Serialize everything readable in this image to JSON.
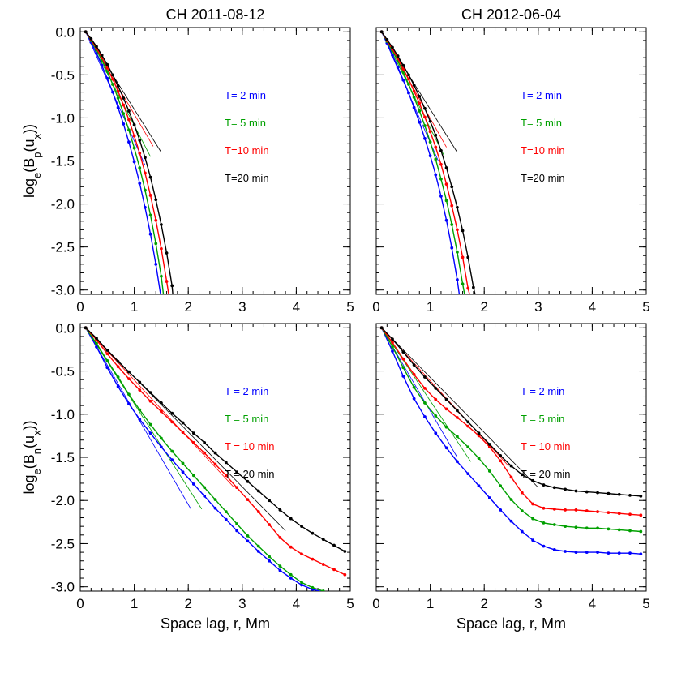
{
  "chart_data": [
    {
      "type": "line",
      "panel": "top-left",
      "title": "CH 2011-08-12",
      "xlabel": "",
      "ylabel": "loge(Bp(ux))",
      "xlim": [
        0,
        5
      ],
      "ylim": [
        -3.05,
        0.05
      ],
      "xticks": [
        "0",
        "1",
        "2",
        "3",
        "4",
        "5"
      ],
      "yticks": [
        "0.0",
        "-0.5",
        "-1.0",
        "-1.5",
        "-2.0",
        "-2.5",
        "-3.0"
      ],
      "legend_placement": "right",
      "series": [
        {
          "name": "T= 2 min",
          "color": "#0000ff",
          "x": [
            0.1,
            0.2,
            0.3,
            0.4,
            0.5,
            0.6,
            0.7,
            0.8,
            0.9,
            1.0,
            1.1,
            1.2,
            1.3,
            1.4,
            1.5
          ],
          "y": [
            0.0,
            -0.12,
            -0.25,
            -0.39,
            -0.54,
            -0.7,
            -0.88,
            -1.07,
            -1.28,
            -1.51,
            -1.76,
            -2.04,
            -2.35,
            -2.7,
            -3.1
          ]
        },
        {
          "name": "T= 5 min",
          "color": "#00a000",
          "x": [
            0.1,
            0.2,
            0.3,
            0.4,
            0.5,
            0.6,
            0.7,
            0.8,
            0.9,
            1.0,
            1.1,
            1.2,
            1.3,
            1.4,
            1.5,
            1.55
          ],
          "y": [
            0.0,
            -0.1,
            -0.21,
            -0.33,
            -0.46,
            -0.61,
            -0.77,
            -0.95,
            -1.14,
            -1.35,
            -1.58,
            -1.84,
            -2.13,
            -2.46,
            -2.84,
            -3.1
          ]
        },
        {
          "name": "T=10 min",
          "color": "#ff0000",
          "x": [
            0.1,
            0.2,
            0.3,
            0.4,
            0.5,
            0.6,
            0.7,
            0.8,
            0.9,
            1.0,
            1.1,
            1.2,
            1.3,
            1.4,
            1.5,
            1.6,
            1.65
          ],
          "y": [
            0.0,
            -0.09,
            -0.19,
            -0.3,
            -0.42,
            -0.55,
            -0.69,
            -0.85,
            -1.02,
            -1.21,
            -1.41,
            -1.64,
            -1.9,
            -2.19,
            -2.52,
            -2.9,
            -3.1
          ]
        },
        {
          "name": "T=20 min",
          "color": "#000000",
          "x": [
            0.1,
            0.2,
            0.3,
            0.4,
            0.5,
            0.6,
            0.7,
            0.8,
            0.9,
            1.0,
            1.1,
            1.2,
            1.3,
            1.4,
            1.5,
            1.6,
            1.7,
            1.72
          ],
          "y": [
            0.0,
            -0.08,
            -0.17,
            -0.27,
            -0.38,
            -0.5,
            -0.63,
            -0.77,
            -0.92,
            -1.08,
            -1.26,
            -1.46,
            -1.69,
            -1.95,
            -2.24,
            -2.57,
            -2.95,
            -3.1
          ]
        }
      ],
      "fits": [
        {
          "color": "#0000ff",
          "x": [
            0.1,
            1.2
          ],
          "y": [
            0.0,
            -1.55
          ]
        },
        {
          "color": "#00a000",
          "x": [
            0.1,
            1.3
          ],
          "y": [
            0.0,
            -1.45
          ]
        },
        {
          "color": "#ff0000",
          "x": [
            0.1,
            1.35
          ],
          "y": [
            0.0,
            -1.33
          ]
        },
        {
          "color": "#000000",
          "x": [
            0.1,
            1.5
          ],
          "y": [
            0.0,
            -1.4
          ]
        }
      ]
    },
    {
      "type": "line",
      "panel": "top-right",
      "title": "CH 2012-06-04",
      "xlabel": "",
      "ylabel": "",
      "xlim": [
        0,
        5
      ],
      "ylim": [
        -3.05,
        0.05
      ],
      "xticks": [
        "0",
        "1",
        "2",
        "3",
        "4",
        "5"
      ],
      "yticks": [],
      "legend_placement": "right",
      "series": [
        {
          "name": "T= 2 min",
          "color": "#0000ff",
          "x": [
            0.1,
            0.2,
            0.3,
            0.4,
            0.5,
            0.6,
            0.7,
            0.8,
            0.9,
            1.0,
            1.1,
            1.2,
            1.3,
            1.4,
            1.5,
            1.55
          ],
          "y": [
            0.0,
            -0.13,
            -0.27,
            -0.41,
            -0.56,
            -0.71,
            -0.88,
            -1.05,
            -1.24,
            -1.44,
            -1.66,
            -1.91,
            -2.19,
            -2.51,
            -2.88,
            -3.1
          ]
        },
        {
          "name": "T= 5 min",
          "color": "#00a000",
          "x": [
            0.1,
            0.2,
            0.3,
            0.4,
            0.5,
            0.6,
            0.7,
            0.8,
            0.9,
            1.0,
            1.1,
            1.2,
            1.3,
            1.4,
            1.5,
            1.6,
            1.65
          ],
          "y": [
            0.0,
            -0.11,
            -0.22,
            -0.34,
            -0.47,
            -0.61,
            -0.76,
            -0.92,
            -1.09,
            -1.28,
            -1.48,
            -1.71,
            -1.96,
            -2.24,
            -2.56,
            -2.93,
            -3.1
          ]
        },
        {
          "name": "T=10 min",
          "color": "#ff0000",
          "x": [
            0.1,
            0.2,
            0.3,
            0.4,
            0.5,
            0.6,
            0.7,
            0.8,
            0.9,
            1.0,
            1.1,
            1.2,
            1.3,
            1.4,
            1.5,
            1.6,
            1.7,
            1.75
          ],
          "y": [
            0.0,
            -0.1,
            -0.2,
            -0.31,
            -0.43,
            -0.55,
            -0.69,
            -0.83,
            -0.99,
            -1.16,
            -1.34,
            -1.54,
            -1.77,
            -2.02,
            -2.3,
            -2.62,
            -2.98,
            -3.1
          ]
        },
        {
          "name": "T=20 min",
          "color": "#000000",
          "x": [
            0.1,
            0.2,
            0.3,
            0.4,
            0.5,
            0.6,
            0.7,
            0.8,
            0.9,
            1.0,
            1.1,
            1.2,
            1.3,
            1.4,
            1.5,
            1.6,
            1.7,
            1.8,
            1.85
          ],
          "y": [
            0.0,
            -0.09,
            -0.18,
            -0.28,
            -0.39,
            -0.5,
            -0.62,
            -0.75,
            -0.89,
            -1.04,
            -1.2,
            -1.38,
            -1.58,
            -1.8,
            -2.04,
            -2.31,
            -2.62,
            -2.97,
            -3.1
          ]
        }
      ],
      "fits": [
        {
          "color": "#0000ff",
          "x": [
            0.1,
            1.15
          ],
          "y": [
            0.0,
            -1.5
          ]
        },
        {
          "color": "#00a000",
          "x": [
            0.1,
            1.25
          ],
          "y": [
            0.0,
            -1.43
          ]
        },
        {
          "color": "#ff0000",
          "x": [
            0.1,
            1.3
          ],
          "y": [
            0.0,
            -1.34
          ]
        },
        {
          "color": "#000000",
          "x": [
            0.1,
            1.5
          ],
          "y": [
            0.0,
            -1.4
          ]
        }
      ]
    },
    {
      "type": "line",
      "panel": "bottom-left",
      "title": "",
      "xlabel": "Space lag, r, Mm",
      "ylabel": "loge(Bn(ux))",
      "xlim": [
        0,
        5
      ],
      "ylim": [
        -3.05,
        0.05
      ],
      "xticks": [
        "0",
        "1",
        "2",
        "3",
        "4",
        "5"
      ],
      "yticks": [
        "0.0",
        "-0.5",
        "-1.0",
        "-1.5",
        "-2.0",
        "-2.5",
        "-3.0"
      ],
      "legend_placement": "right",
      "series": [
        {
          "name": "T = 2 min",
          "color": "#0000ff",
          "x": [
            0.1,
            0.3,
            0.5,
            0.7,
            0.9,
            1.1,
            1.3,
            1.5,
            1.7,
            1.9,
            2.1,
            2.3,
            2.5,
            2.7,
            2.9,
            3.1,
            3.3,
            3.5,
            3.7,
            3.9,
            4.1,
            4.3,
            4.5,
            4.55
          ],
          "y": [
            0.0,
            -0.22,
            -0.46,
            -0.68,
            -0.88,
            -1.06,
            -1.22,
            -1.38,
            -1.53,
            -1.67,
            -1.81,
            -1.95,
            -2.09,
            -2.22,
            -2.35,
            -2.47,
            -2.59,
            -2.7,
            -2.81,
            -2.9,
            -2.98,
            -3.03,
            -3.06,
            -3.07
          ]
        },
        {
          "name": "T = 5 min",
          "color": "#00a000",
          "x": [
            0.1,
            0.3,
            0.5,
            0.7,
            0.9,
            1.1,
            1.3,
            1.5,
            1.7,
            1.9,
            2.1,
            2.3,
            2.5,
            2.7,
            2.9,
            3.1,
            3.3,
            3.5,
            3.7,
            3.9,
            4.1,
            4.3,
            4.5,
            4.6
          ],
          "y": [
            0.0,
            -0.18,
            -0.38,
            -0.57,
            -0.77,
            -0.95,
            -1.12,
            -1.28,
            -1.43,
            -1.57,
            -1.71,
            -1.85,
            -1.99,
            -2.13,
            -2.27,
            -2.41,
            -2.53,
            -2.65,
            -2.76,
            -2.86,
            -2.95,
            -3.01,
            -3.05,
            -3.07
          ]
        },
        {
          "name": "T = 10 min",
          "color": "#ff0000",
          "x": [
            0.1,
            0.3,
            0.5,
            0.7,
            0.9,
            1.1,
            1.3,
            1.5,
            1.7,
            1.9,
            2.1,
            2.3,
            2.5,
            2.7,
            2.9,
            3.1,
            3.3,
            3.5,
            3.7,
            3.9,
            4.1,
            4.3,
            4.5,
            4.7,
            4.9
          ],
          "y": [
            0.0,
            -0.14,
            -0.3,
            -0.45,
            -0.59,
            -0.72,
            -0.85,
            -0.97,
            -1.09,
            -1.21,
            -1.33,
            -1.45,
            -1.58,
            -1.71,
            -1.85,
            -1.99,
            -2.13,
            -2.28,
            -2.43,
            -2.54,
            -2.62,
            -2.68,
            -2.74,
            -2.8,
            -2.86
          ]
        },
        {
          "name": "T = 20 min",
          "color": "#000000",
          "x": [
            0.1,
            0.3,
            0.5,
            0.7,
            0.9,
            1.1,
            1.3,
            1.5,
            1.7,
            1.9,
            2.1,
            2.3,
            2.5,
            2.7,
            2.9,
            3.1,
            3.3,
            3.5,
            3.7,
            3.9,
            4.1,
            4.3,
            4.5,
            4.7,
            4.9
          ],
          "y": [
            0.0,
            -0.12,
            -0.26,
            -0.39,
            -0.51,
            -0.63,
            -0.75,
            -0.87,
            -0.99,
            -1.1,
            -1.22,
            -1.33,
            -1.45,
            -1.56,
            -1.67,
            -1.78,
            -1.89,
            -2.0,
            -2.11,
            -2.21,
            -2.3,
            -2.38,
            -2.45,
            -2.52,
            -2.59
          ]
        }
      ],
      "fits": [
        {
          "color": "#0000ff",
          "x": [
            0.1,
            2.05
          ],
          "y": [
            0.0,
            -2.1
          ]
        },
        {
          "color": "#00a000",
          "x": [
            0.1,
            2.25
          ],
          "y": [
            0.0,
            -2.1
          ]
        },
        {
          "color": "#ff0000",
          "x": [
            0.1,
            2.85
          ],
          "y": [
            0.0,
            -1.85
          ]
        },
        {
          "color": "#000000",
          "x": [
            0.1,
            3.8
          ],
          "y": [
            0.0,
            -2.35
          ]
        }
      ]
    },
    {
      "type": "line",
      "panel": "bottom-right",
      "title": "",
      "xlabel": "Space lag, r, Mm",
      "ylabel": "",
      "xlim": [
        0,
        5
      ],
      "ylim": [
        -3.05,
        0.05
      ],
      "xticks": [
        "0",
        "1",
        "2",
        "3",
        "4",
        "5"
      ],
      "yticks": [],
      "legend_placement": "right",
      "series": [
        {
          "name": "T = 2 min",
          "color": "#0000ff",
          "x": [
            0.1,
            0.3,
            0.5,
            0.7,
            0.9,
            1.1,
            1.3,
            1.5,
            1.7,
            1.9,
            2.1,
            2.3,
            2.5,
            2.7,
            2.9,
            3.1,
            3.3,
            3.5,
            3.7,
            3.9,
            4.1,
            4.3,
            4.5,
            4.7,
            4.9
          ],
          "y": [
            0.0,
            -0.27,
            -0.56,
            -0.82,
            -1.03,
            -1.22,
            -1.39,
            -1.55,
            -1.69,
            -1.83,
            -1.97,
            -2.11,
            -2.24,
            -2.36,
            -2.46,
            -2.53,
            -2.57,
            -2.59,
            -2.6,
            -2.6,
            -2.6,
            -2.61,
            -2.61,
            -2.61,
            -2.62
          ]
        },
        {
          "name": "T = 5 min",
          "color": "#00a000",
          "x": [
            0.1,
            0.3,
            0.5,
            0.7,
            0.9,
            1.1,
            1.3,
            1.5,
            1.7,
            1.9,
            2.1,
            2.3,
            2.5,
            2.7,
            2.9,
            3.1,
            3.3,
            3.5,
            3.7,
            3.9,
            4.1,
            4.3,
            4.5,
            4.7,
            4.9
          ],
          "y": [
            0.0,
            -0.22,
            -0.46,
            -0.69,
            -0.87,
            -1.02,
            -1.15,
            -1.26,
            -1.38,
            -1.51,
            -1.66,
            -1.83,
            -1.99,
            -2.12,
            -2.21,
            -2.26,
            -2.28,
            -2.3,
            -2.31,
            -2.32,
            -2.32,
            -2.33,
            -2.34,
            -2.35,
            -2.36
          ]
        },
        {
          "name": "T = 10 min",
          "color": "#ff0000",
          "x": [
            0.1,
            0.3,
            0.5,
            0.7,
            0.9,
            1.1,
            1.3,
            1.5,
            1.7,
            1.9,
            2.1,
            2.3,
            2.5,
            2.7,
            2.9,
            3.1,
            3.3,
            3.5,
            3.7,
            3.9,
            4.1,
            4.3,
            4.5,
            4.7,
            4.9
          ],
          "y": [
            0.0,
            -0.17,
            -0.36,
            -0.54,
            -0.7,
            -0.83,
            -0.94,
            -1.04,
            -1.14,
            -1.25,
            -1.38,
            -1.54,
            -1.73,
            -1.91,
            -2.04,
            -2.09,
            -2.1,
            -2.11,
            -2.11,
            -2.12,
            -2.13,
            -2.14,
            -2.15,
            -2.16,
            -2.17
          ]
        },
        {
          "name": "T = 20 min",
          "color": "#000000",
          "x": [
            0.1,
            0.3,
            0.5,
            0.7,
            0.9,
            1.1,
            1.3,
            1.5,
            1.7,
            1.9,
            2.1,
            2.3,
            2.5,
            2.7,
            2.9,
            3.1,
            3.3,
            3.5,
            3.7,
            3.9,
            4.1,
            4.3,
            4.5,
            4.7,
            4.9
          ],
          "y": [
            0.0,
            -0.13,
            -0.28,
            -0.43,
            -0.57,
            -0.7,
            -0.83,
            -0.96,
            -1.09,
            -1.22,
            -1.35,
            -1.48,
            -1.6,
            -1.7,
            -1.77,
            -1.82,
            -1.85,
            -1.87,
            -1.89,
            -1.9,
            -1.91,
            -1.92,
            -1.93,
            -1.94,
            -1.95
          ]
        }
      ],
      "fits": [
        {
          "color": "#0000ff",
          "x": [
            0.1,
            1.5
          ],
          "y": [
            0.0,
            -1.5
          ]
        },
        {
          "color": "#00a000",
          "x": [
            0.1,
            1.75
          ],
          "y": [
            0.0,
            -1.55
          ]
        },
        {
          "color": "#ff0000",
          "x": [
            0.1,
            2.45
          ],
          "y": [
            0.0,
            -1.6
          ]
        },
        {
          "color": "#000000",
          "x": [
            0.1,
            3.0
          ],
          "y": [
            0.0,
            -1.85
          ]
        }
      ]
    }
  ]
}
